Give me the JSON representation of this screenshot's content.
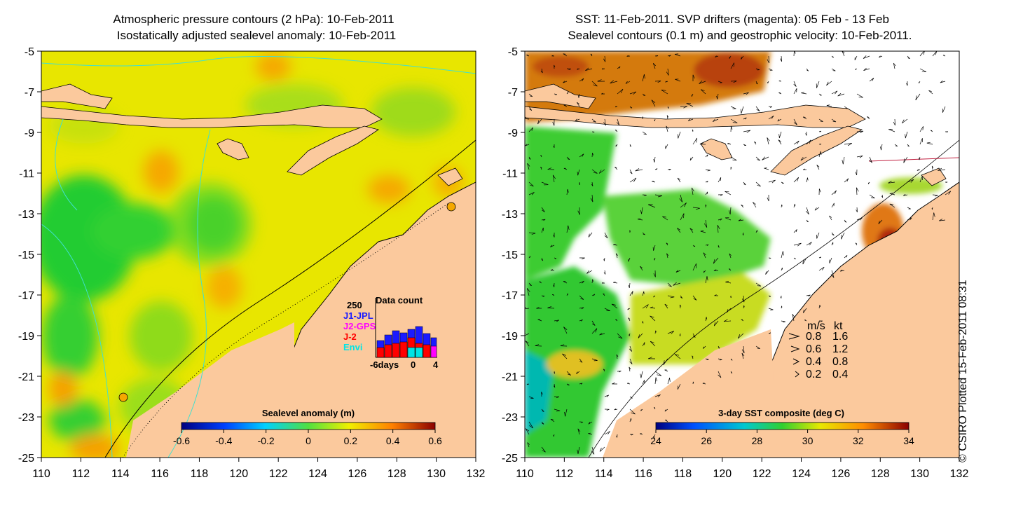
{
  "left_panel": {
    "title_line1": "Atmospheric pressure contours (2 hPa): 10-Feb-2011",
    "title_line2": "Isostatically adjusted sealevel anomaly: 10-Feb-2011",
    "colorbar_label": "Sealevel anomaly (m)",
    "colorbar_ticks": [
      "-0.6",
      "-0.4",
      "-0.2",
      "0",
      "0.2",
      "0.4",
      "0.6"
    ],
    "inset": {
      "title": "Data count",
      "max_label": "250",
      "legend": [
        {
          "label": "J1-JPL",
          "color": "#1a1aff"
        },
        {
          "label": "J2-GPS",
          "color": "#ff00ff"
        },
        {
          "label": "J-2",
          "color": "#ff0000"
        },
        {
          "label": "Envi",
          "color": "#00e5e5"
        }
      ],
      "x_ticks": [
        "-6days",
        "0",
        "4"
      ]
    }
  },
  "right_panel": {
    "title_line1": "SST: 11-Feb-2011. SVP drifters (magenta): 05 Feb - 13 Feb",
    "title_line2": "Sealevel contours (0.1 m) and geostrophic velocity: 10-Feb-2011.",
    "colorbar_label": "3-day SST composite (deg C)",
    "colorbar_ticks": [
      "24",
      "26",
      "28",
      "30",
      "32",
      "34"
    ],
    "velocity_legend": {
      "header_ms": "m/s",
      "header_kt": "kt",
      "rows": [
        {
          "ms": "0.8",
          "kt": "1.6"
        },
        {
          "ms": "0.6",
          "kt": "1.2"
        },
        {
          "ms": "0.4",
          "kt": "0.8"
        },
        {
          "ms": "0.2",
          "kt": "0.4"
        }
      ]
    }
  },
  "axes": {
    "lat_labels": [
      "-5",
      "-7",
      "-9",
      "-11",
      "-13",
      "-15",
      "-17",
      "-19",
      "-21",
      "-23",
      "-25"
    ],
    "lon_labels": [
      "110",
      "112",
      "114",
      "116",
      "118",
      "120",
      "122",
      "124",
      "126",
      "128",
      "130",
      "132"
    ]
  },
  "watermark": "© CSIRO Plotted 15-Feb-2011 08:31",
  "colors": {
    "land": "#fbc99d",
    "sla_background": "#e8e600",
    "sla_low": "#22cc33",
    "sla_high": "#f5a800",
    "sst_warm": "#d47a10",
    "sst_hot": "#b02808",
    "sst_mid": "#33cc33",
    "sst_cool": "#00b8b0"
  }
}
